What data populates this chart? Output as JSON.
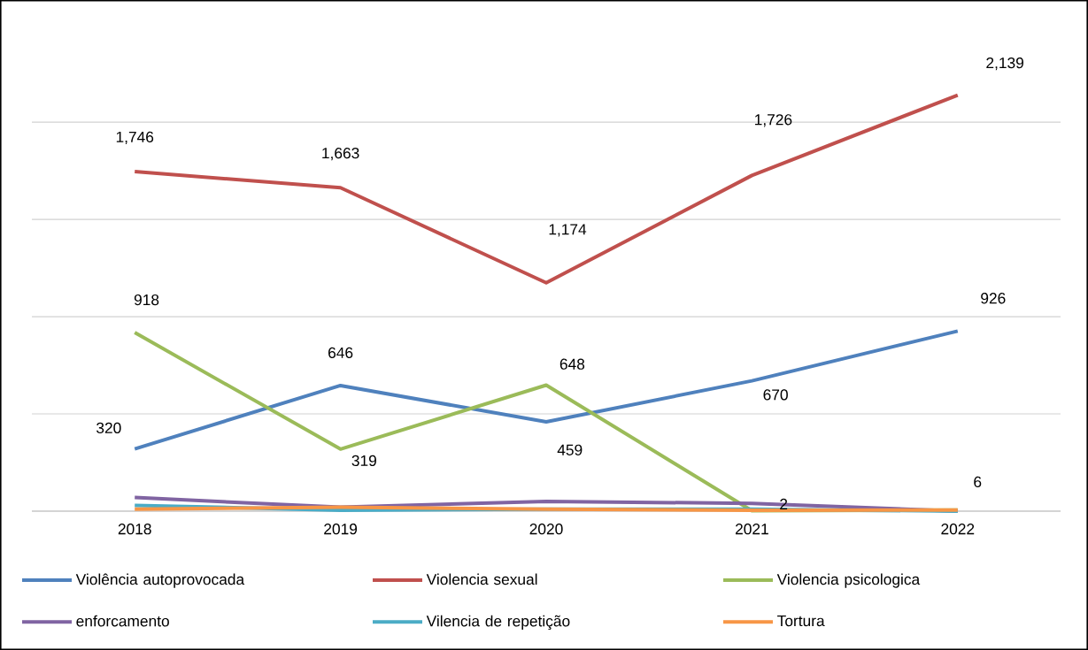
{
  "chart_data": {
    "type": "line",
    "categories": [
      "2018",
      "2019",
      "2020",
      "2021",
      "2022"
    ],
    "tick_labels": "x",
    "grid": "y",
    "legend": "bottom",
    "marker": "none",
    "line_style": "solid",
    "series": [
      {
        "name": "Violência autoprovocada",
        "color": "#4f81bd",
        "values": [
          320,
          646,
          459,
          670,
          926
        ],
        "value_labels": [
          "320",
          "646",
          "459",
          "670",
          "926"
        ]
      },
      {
        "name": "Violencia sexual",
        "color": "#c0504d",
        "values": [
          1746,
          1663,
          1174,
          1726,
          2139
        ],
        "value_labels": [
          "1,746",
          "1,663",
          "1,174",
          "1,726",
          "2,139"
        ]
      },
      {
        "name": "Violencia psicologica",
        "color": "#9bbb59",
        "values": [
          918,
          319,
          648,
          2,
          6
        ],
        "value_labels": [
          "918",
          "319",
          "648",
          "2",
          "6"
        ]
      },
      {
        "name": "enforcamento",
        "color": "#8064a2",
        "values": [
          70,
          20,
          50,
          40,
          0
        ]
      },
      {
        "name": "Vilencia de repetição",
        "color": "#4bacc6",
        "values": [
          30,
          5,
          10,
          10,
          0
        ]
      },
      {
        "name": "Tortura",
        "color": "#f79646",
        "values": [
          10,
          20,
          10,
          5,
          6
        ]
      }
    ]
  }
}
